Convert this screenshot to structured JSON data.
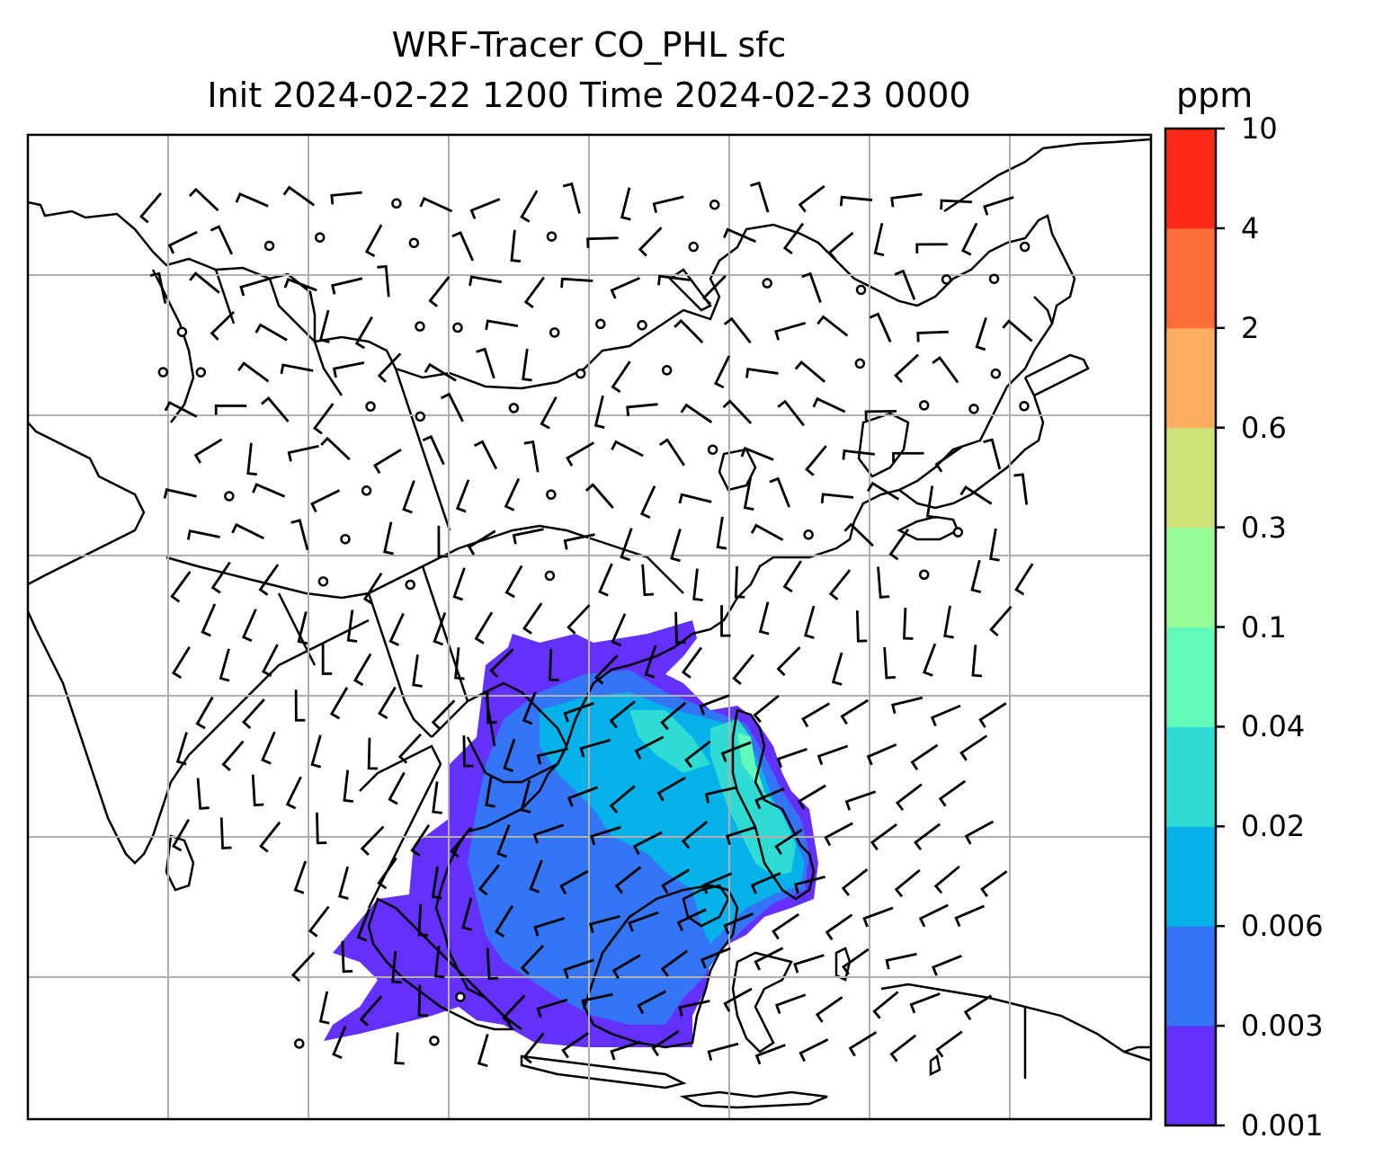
{
  "title": "WRF-Tracer CO_PHL sfc",
  "subtitle": "Init 2024-02-22 1200 Time 2024-02-23 0000",
  "colorbar": {
    "unit": "ppm",
    "levels": [
      "0.001",
      "0.003",
      "0.006",
      "0.02",
      "0.04",
      "0.1",
      "0.3",
      "0.6",
      "2",
      "4",
      "10"
    ],
    "colors": [
      "#6430fb",
      "#3375f4",
      "#04b2e9",
      "#2fdcd3",
      "#63f9bb",
      "#98fd97",
      "#cde37a",
      "#fdad5d",
      "#fe6d3a",
      "#fe2a17"
    ]
  },
  "map": {
    "variable": "CO_PHL tracer",
    "features": [
      "coastlines",
      "country borders",
      "lat/lon gridlines",
      "wind barbs",
      "calm-wind circles",
      "filled concentration contours"
    ]
  }
}
